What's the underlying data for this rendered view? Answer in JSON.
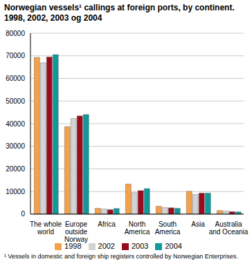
{
  "chart_data": {
    "type": "bar",
    "title": "Norwegian vessels¹ callings at foreign ports, by continent. 1998, 2002, 2003 og 2004",
    "categories": [
      "The whole world",
      "Europe outside Norway",
      "Africa",
      "North America",
      "South America",
      "Asia",
      "Australia and Oceania"
    ],
    "series": [
      {
        "name": "1998",
        "color": "#f5a04b",
        "values": [
          69300,
          38700,
          2600,
          13300,
          3500,
          10100,
          1600
        ]
      },
      {
        "name": "2002",
        "color": "#d3d3d3",
        "values": [
          66900,
          42300,
          2300,
          9500,
          2900,
          8700,
          1400
        ]
      },
      {
        "name": "2003",
        "color": "#9a0a1e",
        "values": [
          69500,
          43400,
          2000,
          10400,
          2800,
          9300,
          1100
        ]
      },
      {
        "name": "2004",
        "color": "#12999a",
        "values": [
          70500,
          44000,
          2500,
          11300,
          2600,
          9300,
          1000
        ]
      }
    ],
    "ylim": [
      0,
      80000
    ],
    "yticks": [
      0,
      10000,
      20000,
      30000,
      40000,
      50000,
      60000,
      70000,
      80000
    ],
    "grid": true,
    "legend": "bottom",
    "annotations": [
      "¹ Vessels in domestic and foreign ship registers controlled by Norwegian Enterprises."
    ]
  }
}
